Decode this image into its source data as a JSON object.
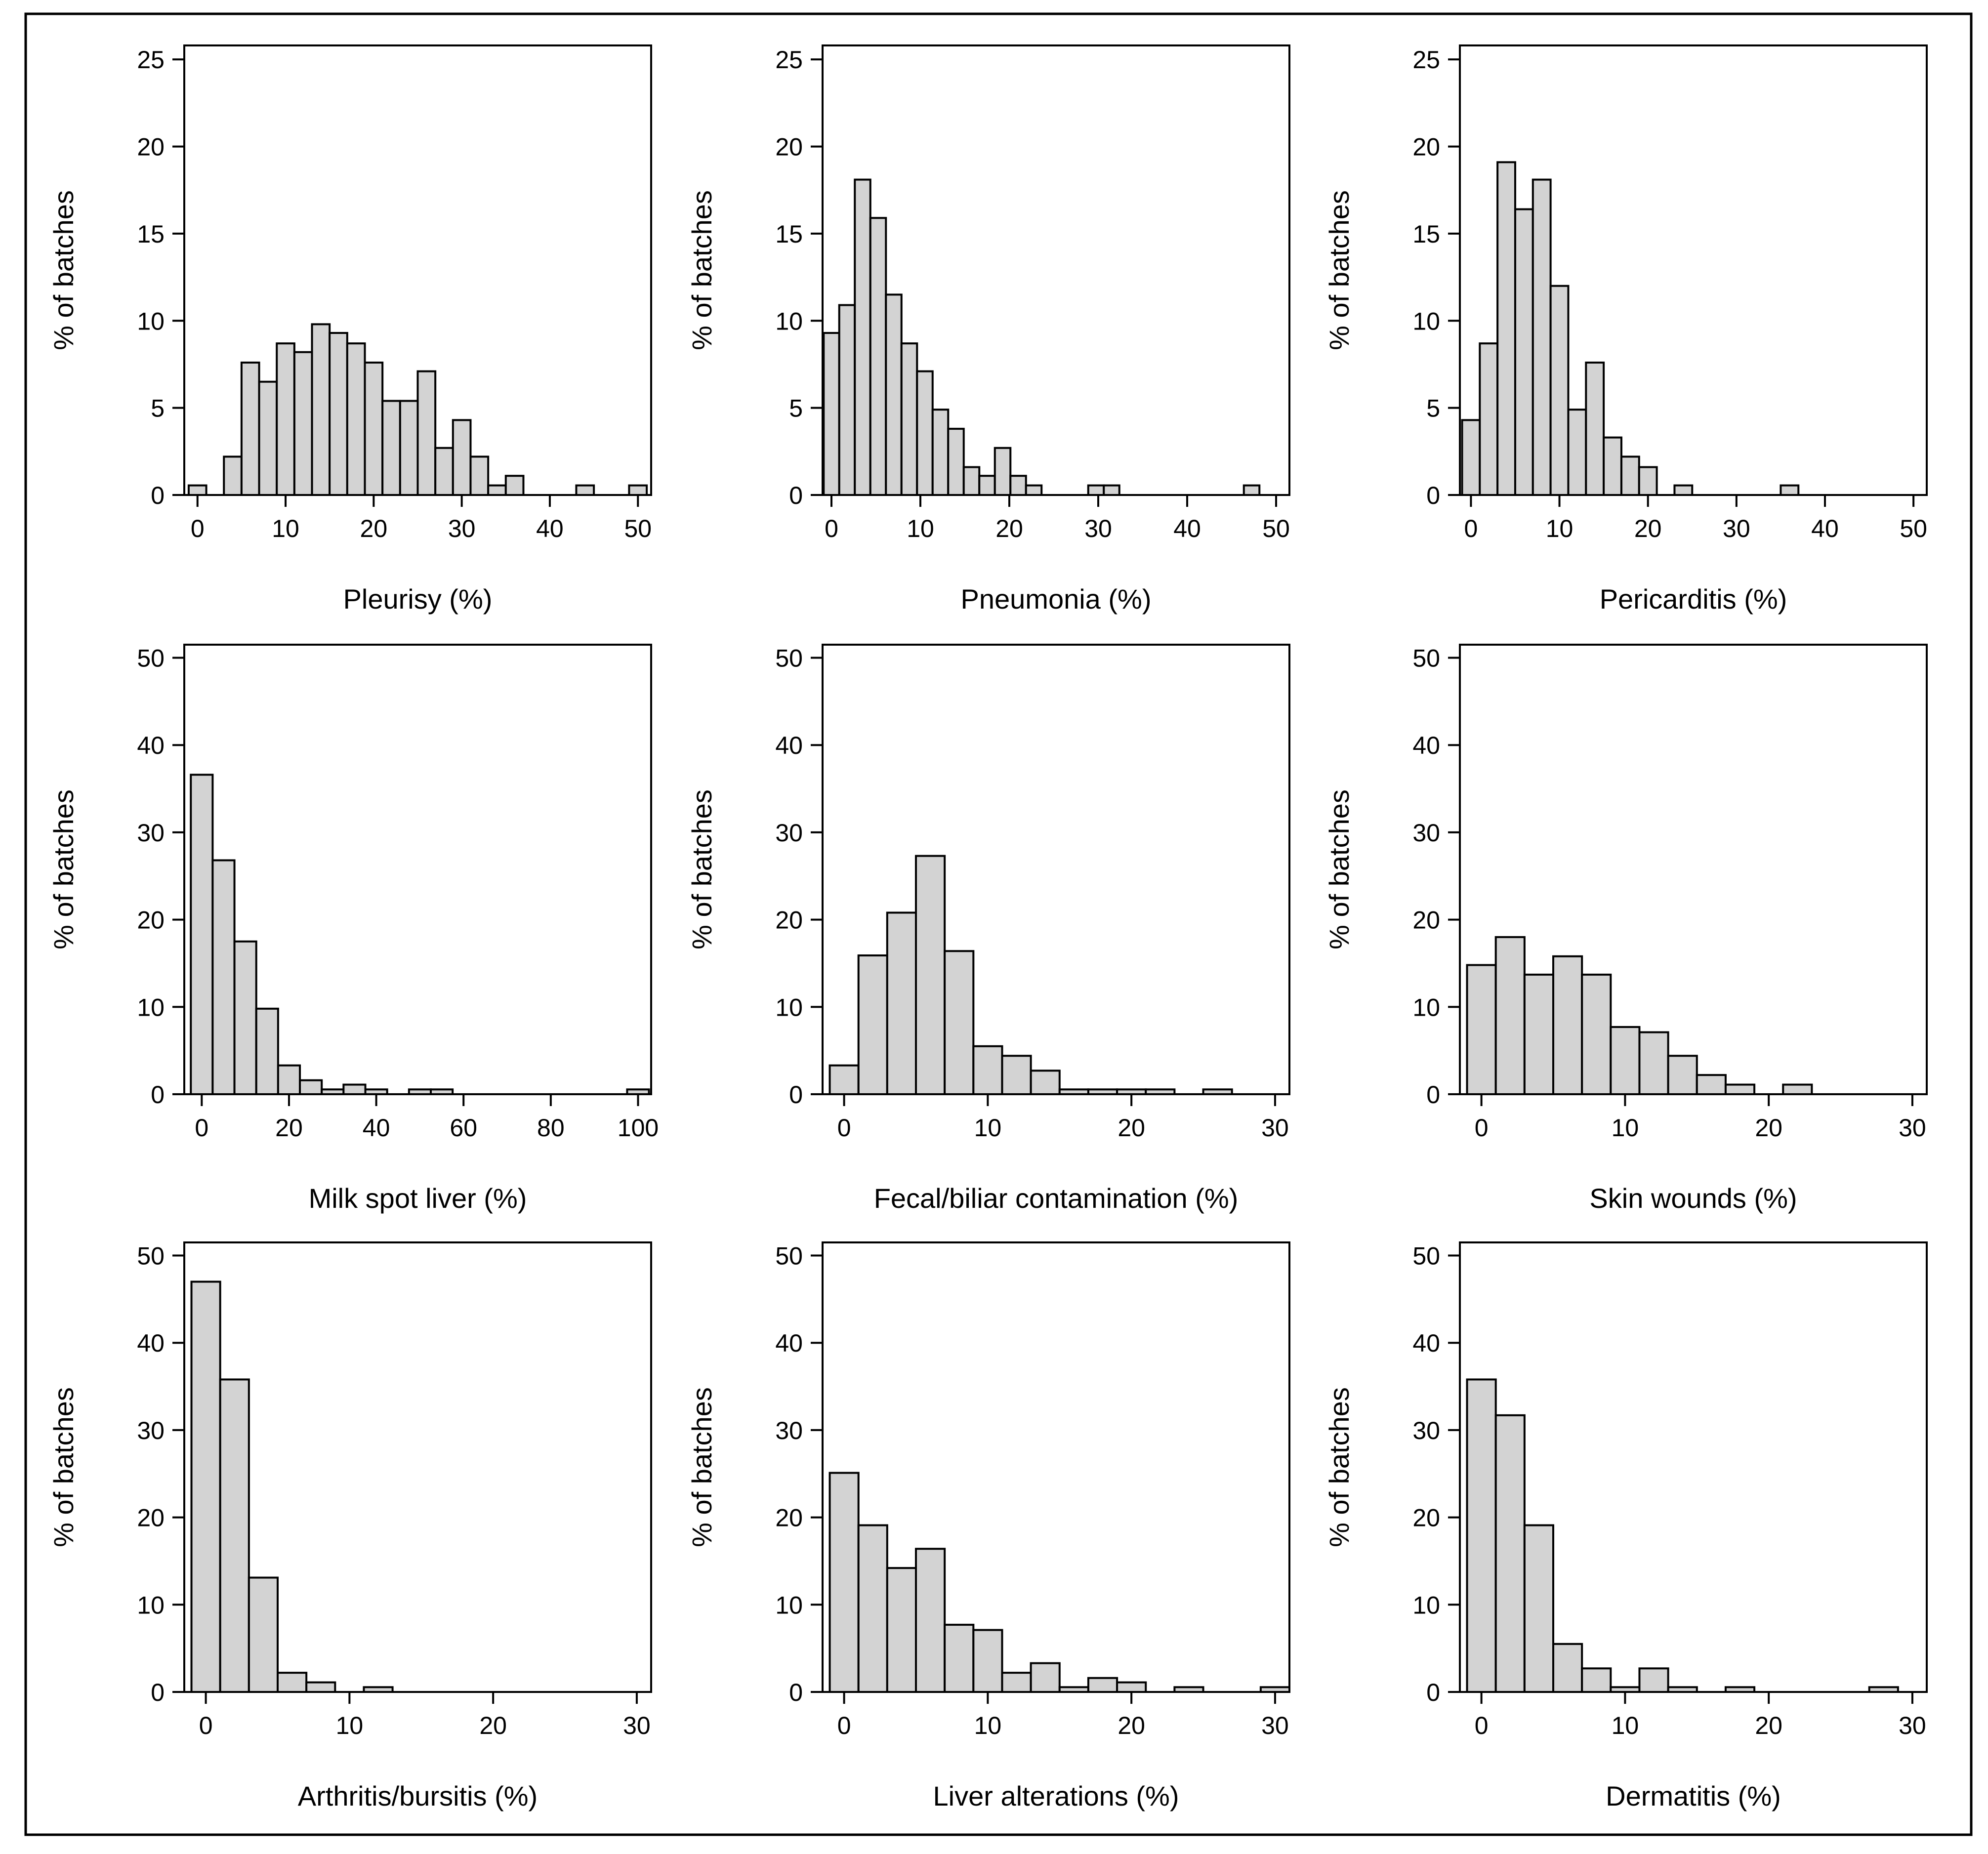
{
  "chart_data": [
    {
      "type": "bar",
      "xlabel": "Pleurisy (%)",
      "ylabel": "% of batches",
      "xlim": [
        -1.5,
        51.5
      ],
      "ylim": [
        0,
        25.8
      ],
      "xticks": [
        0,
        10,
        20,
        30,
        40,
        50
      ],
      "yticks": [
        0,
        5,
        10,
        15,
        20,
        25
      ],
      "bin_width": 2,
      "bins": [
        {
          "x": 0,
          "value": 0.55
        },
        {
          "x": 4,
          "value": 2.2
        },
        {
          "x": 6,
          "value": 7.6
        },
        {
          "x": 8,
          "value": 6.5
        },
        {
          "x": 10,
          "value": 8.7
        },
        {
          "x": 12,
          "value": 8.2
        },
        {
          "x": 14,
          "value": 9.8
        },
        {
          "x": 16,
          "value": 9.3
        },
        {
          "x": 18,
          "value": 8.7
        },
        {
          "x": 20,
          "value": 7.6
        },
        {
          "x": 22,
          "value": 5.4
        },
        {
          "x": 24,
          "value": 5.4
        },
        {
          "x": 26,
          "value": 7.1
        },
        {
          "x": 28,
          "value": 2.7
        },
        {
          "x": 30,
          "value": 4.3
        },
        {
          "x": 32,
          "value": 2.2
        },
        {
          "x": 34,
          "value": 0.55
        },
        {
          "x": 36,
          "value": 1.1
        },
        {
          "x": 44,
          "value": 0.55
        },
        {
          "x": 50,
          "value": 0.55
        }
      ]
    },
    {
      "type": "bar",
      "xlabel": "Pneumonia (%)",
      "ylabel": "% of batches",
      "xlim": [
        -1,
        51.5
      ],
      "ylim": [
        0,
        25.8
      ],
      "xticks": [
        0,
        10,
        20,
        30,
        40,
        50
      ],
      "yticks": [
        0,
        5,
        10,
        15,
        20,
        25
      ],
      "bin_width": 1.75,
      "bins": [
        {
          "x": 0,
          "value": 9.3
        },
        {
          "x": 1.75,
          "value": 10.9
        },
        {
          "x": 3.5,
          "value": 18.1
        },
        {
          "x": 5.25,
          "value": 15.9
        },
        {
          "x": 7,
          "value": 11.5
        },
        {
          "x": 8.75,
          "value": 8.7
        },
        {
          "x": 10.5,
          "value": 7.1
        },
        {
          "x": 12.25,
          "value": 4.9
        },
        {
          "x": 14,
          "value": 3.8
        },
        {
          "x": 15.75,
          "value": 1.6
        },
        {
          "x": 17.5,
          "value": 1.1
        },
        {
          "x": 19.25,
          "value": 2.7
        },
        {
          "x": 21,
          "value": 1.1
        },
        {
          "x": 22.75,
          "value": 0.55
        },
        {
          "x": 29.75,
          "value": 0.55
        },
        {
          "x": 31.5,
          "value": 0.55
        },
        {
          "x": 47.25,
          "value": 0.55
        }
      ]
    },
    {
      "type": "bar",
      "xlabel": "Pericarditis (%)",
      "ylabel": "% of batches",
      "xlim": [
        -1.25,
        51.5
      ],
      "ylim": [
        0,
        25.8
      ],
      "xticks": [
        0,
        10,
        20,
        30,
        40,
        50
      ],
      "yticks": [
        0,
        5,
        10,
        15,
        20,
        25
      ],
      "bin_width": 2,
      "bins": [
        {
          "x": 0,
          "value": 4.3
        },
        {
          "x": 2,
          "value": 8.7
        },
        {
          "x": 4,
          "value": 19.1
        },
        {
          "x": 6,
          "value": 16.4
        },
        {
          "x": 8,
          "value": 18.1
        },
        {
          "x": 10,
          "value": 12.0
        },
        {
          "x": 12,
          "value": 4.9
        },
        {
          "x": 14,
          "value": 7.6
        },
        {
          "x": 16,
          "value": 3.3
        },
        {
          "x": 18,
          "value": 2.2
        },
        {
          "x": 20,
          "value": 1.6
        },
        {
          "x": 24,
          "value": 0.55
        },
        {
          "x": 36,
          "value": 0.55
        }
      ]
    },
    {
      "type": "bar",
      "xlabel": "Milk spot liver (%)",
      "ylabel": "% of batches",
      "xlim": [
        -4,
        103
      ],
      "ylim": [
        0,
        51.5
      ],
      "xticks": [
        0,
        20,
        40,
        60,
        80,
        100
      ],
      "yticks": [
        0,
        10,
        20,
        30,
        40,
        50
      ],
      "bin_width": 5,
      "bins": [
        {
          "x": 0,
          "value": 36.6
        },
        {
          "x": 5,
          "value": 26.8
        },
        {
          "x": 10,
          "value": 17.5
        },
        {
          "x": 15,
          "value": 9.8
        },
        {
          "x": 20,
          "value": 3.3
        },
        {
          "x": 25,
          "value": 1.6
        },
        {
          "x": 30,
          "value": 0.55
        },
        {
          "x": 35,
          "value": 1.1
        },
        {
          "x": 40,
          "value": 0.55
        },
        {
          "x": 50,
          "value": 0.55
        },
        {
          "x": 55,
          "value": 0.55
        },
        {
          "x": 100,
          "value": 0.55
        }
      ]
    },
    {
      "type": "bar",
      "xlabel": "Fecal/biliar contamination (%)",
      "ylabel": "% of batches",
      "xlim": [
        -1.5,
        31
      ],
      "ylim": [
        0,
        51.5
      ],
      "xticks": [
        0,
        10,
        20,
        30
      ],
      "yticks": [
        0,
        10,
        20,
        30,
        40,
        50
      ],
      "bin_width": 2,
      "bins": [
        {
          "x": 0,
          "value": 3.3
        },
        {
          "x": 2,
          "value": 15.9
        },
        {
          "x": 4,
          "value": 20.8
        },
        {
          "x": 6,
          "value": 27.3
        },
        {
          "x": 8,
          "value": 16.4
        },
        {
          "x": 10,
          "value": 5.5
        },
        {
          "x": 12,
          "value": 4.4
        },
        {
          "x": 14,
          "value": 2.7
        },
        {
          "x": 16,
          "value": 0.55
        },
        {
          "x": 18,
          "value": 0.55
        },
        {
          "x": 20,
          "value": 0.55
        },
        {
          "x": 22,
          "value": 0.55
        },
        {
          "x": 26,
          "value": 0.55
        }
      ]
    },
    {
      "type": "bar",
      "xlabel": "Skin wounds (%)",
      "ylabel": "% of batches",
      "xlim": [
        -1.5,
        31
      ],
      "ylim": [
        0,
        51.5
      ],
      "xticks": [
        0,
        10,
        20,
        30
      ],
      "yticks": [
        0,
        10,
        20,
        30,
        40,
        50
      ],
      "bin_width": 2,
      "bins": [
        {
          "x": 0,
          "value": 14.8
        },
        {
          "x": 2,
          "value": 18.0
        },
        {
          "x": 4,
          "value": 13.7
        },
        {
          "x": 6,
          "value": 15.8
        },
        {
          "x": 8,
          "value": 13.7
        },
        {
          "x": 10,
          "value": 7.7
        },
        {
          "x": 12,
          "value": 7.1
        },
        {
          "x": 14,
          "value": 4.4
        },
        {
          "x": 16,
          "value": 2.2
        },
        {
          "x": 18,
          "value": 1.1
        },
        {
          "x": 22,
          "value": 1.1
        }
      ]
    },
    {
      "type": "bar",
      "xlabel": "Arthritis/bursitis (%)",
      "ylabel": "% of batches",
      "xlim": [
        -1.5,
        31
      ],
      "ylim": [
        0,
        51.5
      ],
      "xticks": [
        0,
        10,
        20,
        30
      ],
      "yticks": [
        0,
        10,
        20,
        30,
        40,
        50
      ],
      "bin_width": 2,
      "bins": [
        {
          "x": 0,
          "value": 47.0
        },
        {
          "x": 2,
          "value": 35.8
        },
        {
          "x": 4,
          "value": 13.1
        },
        {
          "x": 6,
          "value": 2.2
        },
        {
          "x": 8,
          "value": 1.1
        },
        {
          "x": 12,
          "value": 0.55
        }
      ]
    },
    {
      "type": "bar",
      "xlabel": "Liver alterations (%)",
      "ylabel": "% of batches",
      "xlim": [
        -1.5,
        31
      ],
      "ylim": [
        0,
        51.5
      ],
      "xticks": [
        0,
        10,
        20,
        30
      ],
      "yticks": [
        0,
        10,
        20,
        30,
        40,
        50
      ],
      "bin_width": 2,
      "bins": [
        {
          "x": 0,
          "value": 25.1
        },
        {
          "x": 2,
          "value": 19.1
        },
        {
          "x": 4,
          "value": 14.2
        },
        {
          "x": 6,
          "value": 16.4
        },
        {
          "x": 8,
          "value": 7.7
        },
        {
          "x": 10,
          "value": 7.1
        },
        {
          "x": 12,
          "value": 2.2
        },
        {
          "x": 14,
          "value": 3.3
        },
        {
          "x": 16,
          "value": 0.55
        },
        {
          "x": 18,
          "value": 1.6
        },
        {
          "x": 20,
          "value": 1.1
        },
        {
          "x": 24,
          "value": 0.55
        },
        {
          "x": 30,
          "value": 0.55
        }
      ]
    },
    {
      "type": "bar",
      "xlabel": "Dermatitis (%)",
      "ylabel": "% of batches",
      "xlim": [
        -1.5,
        31
      ],
      "ylim": [
        0,
        51.5
      ],
      "xticks": [
        0,
        10,
        20,
        30
      ],
      "yticks": [
        0,
        10,
        20,
        30,
        40,
        50
      ],
      "bin_width": 2,
      "bins": [
        {
          "x": 0,
          "value": 35.8
        },
        {
          "x": 2,
          "value": 31.7
        },
        {
          "x": 4,
          "value": 19.1
        },
        {
          "x": 6,
          "value": 5.5
        },
        {
          "x": 8,
          "value": 2.7
        },
        {
          "x": 10,
          "value": 0.55
        },
        {
          "x": 12,
          "value": 2.7
        },
        {
          "x": 14,
          "value": 0.55
        },
        {
          "x": 18,
          "value": 0.55
        },
        {
          "x": 28,
          "value": 0.55
        }
      ]
    }
  ],
  "colors": {
    "bar_fill": "#d3d3d3",
    "bar_stroke": "#000000",
    "axis": "#000000",
    "frame": "#000000",
    "background": "#ffffff"
  }
}
